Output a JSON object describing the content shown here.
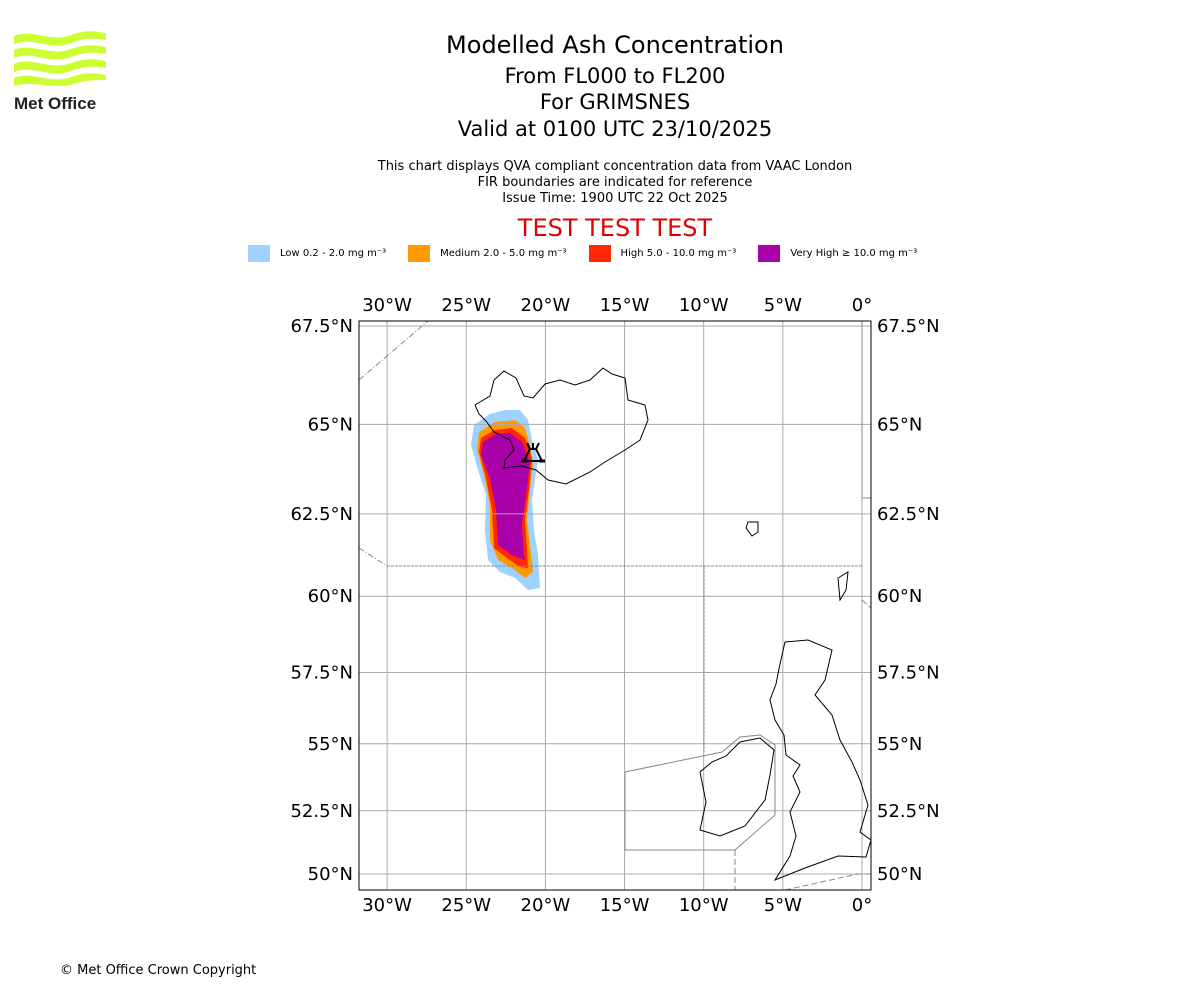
{
  "logo": {
    "text": "Met Office",
    "color": "#ccff33"
  },
  "header": {
    "title": "Modelled Ash Concentration",
    "levels": "From FL000 to FL200",
    "volcano": "For GRIMSNES",
    "valid": "Valid at 0100 UTC 23/10/2025",
    "desc1": "This chart displays QVA compliant concentration data from VAAC London",
    "desc2": "FIR boundaries are indicated for reference",
    "issue": "Issue Time: 1900 UTC 22 Oct 2025",
    "test": "TEST TEST TEST"
  },
  "legend": [
    {
      "label": "Low 0.2 - 2.0 mg m⁻³",
      "color": "#a0d2ff"
    },
    {
      "label": "Medium 2.0 - 5.0 mg m⁻³",
      "color": "#ff9900"
    },
    {
      "label": "High 5.0 - 10.0 mg m⁻³",
      "color": "#ff2800"
    },
    {
      "label": "Very High ≥ 10.0 mg m⁻³",
      "color": "#aa00aa"
    }
  ],
  "map": {
    "lon_ticks": [
      {
        "v": -30,
        "label": "30°W"
      },
      {
        "v": -25,
        "label": "25°W"
      },
      {
        "v": -20,
        "label": "20°W"
      },
      {
        "v": -15,
        "label": "15°W"
      },
      {
        "v": -10,
        "label": "10°W"
      },
      {
        "v": -5,
        "label": "5°W"
      },
      {
        "v": 0,
        "label": "0°"
      }
    ],
    "lat_ticks": [
      {
        "v": 67.5,
        "label": "67.5°N"
      },
      {
        "v": 65,
        "label": "65°N"
      },
      {
        "v": 62.5,
        "label": "62.5°N"
      },
      {
        "v": 60,
        "label": "60°N"
      },
      {
        "v": 57.5,
        "label": "57.5°N"
      },
      {
        "v": 55,
        "label": "55°N"
      },
      {
        "v": 52.5,
        "label": "52.5°N"
      },
      {
        "v": 50,
        "label": "50°N"
      }
    ]
  },
  "footer": {
    "copyright": "© Met Office Crown Copyright"
  }
}
